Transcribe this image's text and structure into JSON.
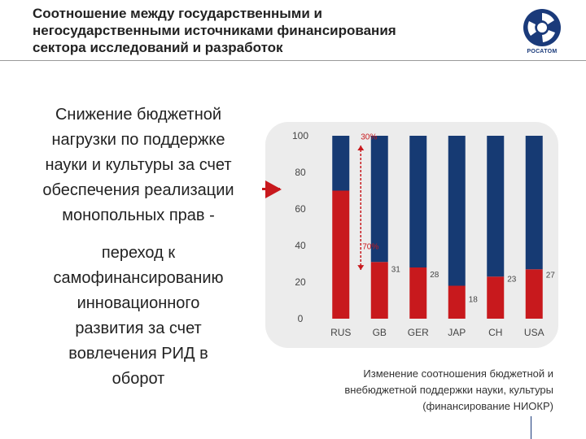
{
  "header": {
    "title": "Соотношение между государственными и\nнегосударственными источниками финансирования\nсектора исследований и разработок",
    "logo_text": "РОСАТОМ"
  },
  "left_panel": {
    "block1": "Снижение бюджетной\nнагрузки по поддержке\nнауки и культуры за счет\nобеспечения реализации\nмонопольных прав -",
    "block2": "переход к\nсамофинансированию\nинновационного\nразвития за счет\nвовлечения РИД в\nоборот"
  },
  "chart_data": {
    "type": "bar",
    "stacked": true,
    "categories": [
      "RUS",
      "GB",
      "GER",
      "JAP",
      "CH",
      "USA"
    ],
    "series": [
      {
        "values": [
          70,
          31,
          28,
          18,
          23,
          27
        ],
        "color": "#c8191d"
      },
      {
        "values": [
          30,
          69,
          72,
          82,
          77,
          73
        ],
        "color": "#163a73"
      }
    ],
    "data_labels": [
      "31",
      "28",
      "18",
      "23",
      "27"
    ],
    "annotations": {
      "top": "30%",
      "bottom": "70%"
    },
    "yticks": [
      "0",
      "20",
      "40",
      "60",
      "80",
      "100"
    ],
    "ylim": [
      0,
      100
    ],
    "grid": false
  },
  "caption": "Изменение соотношения  бюджетной и\nвнебюджетной поддержки науки, культуры\n(финансирование НИОКР)"
}
